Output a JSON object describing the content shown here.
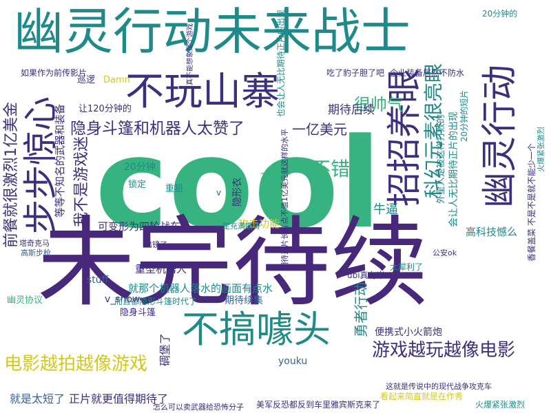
{
  "palette": {
    "navy": "#3b2f7e",
    "blue": "#35609a",
    "teal": "#1f8a8a",
    "green": "#36b37e",
    "lime": "#9bd03a",
    "yellow": "#d6c818",
    "purple": "#47287a"
  },
  "words": [
    {
      "text": "幽灵行动未来战士",
      "color": "teal"
    },
    {
      "text": "不玩山寨",
      "color": "navy"
    },
    {
      "text": "步步惊心",
      "color": "navy"
    },
    {
      "text": "招招养眼",
      "color": "navy"
    },
    {
      "text": "很帅气",
      "color": "green"
    },
    {
      "text": "隐身斗篷和机器人太赞了",
      "color": "navy"
    },
    {
      "text": "科幻元素很亮眼",
      "color": "teal"
    },
    {
      "text": "幽灵行动",
      "color": "navy"
    },
    {
      "text": "cool",
      "color": "green"
    },
    {
      "text": "不错",
      "color": "green"
    },
    {
      "text": "一亿美元",
      "color": "navy"
    },
    {
      "text": "期待后续",
      "color": "navy"
    },
    {
      "text": "前餐就很激烈1亿美金",
      "color": "navy"
    },
    {
      "text": "我不是游戏迷",
      "color": "navy"
    },
    {
      "text": "未完待续",
      "color": "purple"
    },
    {
      "text": "不搞噱头",
      "color": "teal"
    },
    {
      "text": "游戏越玩越像电影",
      "color": "navy"
    },
    {
      "text": "电影越拍越像游戏",
      "color": "yellow"
    },
    {
      "text": "勇者行动",
      "color": "teal"
    },
    {
      "text": "就是太短了",
      "color": "blue"
    },
    {
      "text": "正片就更值得期待了",
      "color": "navy"
    },
    {
      "text": "攻击功能",
      "color": "yellow"
    },
    {
      "text": "高科技憾么",
      "color": "teal"
    },
    {
      "text": "牛逼",
      "color": "teal"
    },
    {
      "text": "隐身斗篷",
      "color": "navy"
    },
    {
      "text": "期待续集",
      "color": "blue"
    },
    {
      "text": "重型机器人",
      "color": "navy"
    },
    {
      "text": "就那个机器人落水的画面有点水",
      "color": "teal"
    },
    {
      "text": "可变形为四轮战车",
      "color": "navy"
    },
    {
      "text": "20分钟",
      "color": "teal"
    },
    {
      "text": "锁定",
      "color": "teal"
    },
    {
      "text": "重狙",
      "color": "teal"
    },
    {
      "text": "隐形衣",
      "color": "navy"
    },
    {
      "text": "youku",
      "color": "blue"
    },
    {
      "text": "v_show",
      "color": "navy"
    },
    {
      "text": "stuff",
      "color": "blue"
    },
    {
      "text": "Damn",
      "color": "yellow"
    },
    {
      "text": "碉堡了",
      "color": "navy"
    },
    {
      "text": "让120分钟的",
      "color": "navy"
    },
    {
      "text": "幽灵协议",
      "color": "green"
    },
    {
      "text": "巡逻",
      "color": "navy"
    },
    {
      "text": "便携式小火箭炮",
      "color": "navy"
    },
    {
      "text": "而且都隐形斗篷时代了",
      "color": "teal"
    },
    {
      "text": "等等不知名的武器和装备",
      "color": "navy"
    },
    {
      "text": "20分钟的",
      "color": "teal"
    },
    {
      "text": "ubi真有米",
      "color": "navy"
    },
    {
      "text": "太犀利了",
      "color": "teal"
    },
    {
      "text": "火爆紧张激烈",
      "color": "teal"
    },
    {
      "text": "看起来简直就是在作秀",
      "color": "yellow"
    },
    {
      "text": "美军反恐都反到车里雅宾斯克来了",
      "color": "navy"
    },
    {
      "text": "怎么可以卖武器给恐怖分子",
      "color": "navy"
    },
    {
      "text": "这就是传说中的现代战争攻克车",
      "color": "navy"
    },
    {
      "text": "香餐盖菜 不是不是就不能少一个",
      "color": "navy"
    },
    {
      "text": "塔奇克马",
      "color": "navy"
    },
    {
      "text": "高斯步枪",
      "color": "blue"
    },
    {
      "text": "出镜了",
      "color": "navy"
    },
    {
      "text": "一定充满期待",
      "color": "teal"
    },
    {
      "text": "2分钟",
      "color": "green"
    },
    {
      "text": "也会让人无比期待正片的出现",
      "color": "teal"
    },
    {
      "text": "会让人无比期待正片的出现",
      "color": "teal"
    },
    {
      "text": "期待正片长有点不值1亿美元就这样的水平",
      "color": "navy"
    },
    {
      "text": "吃了豹子胆了吧",
      "color": "navy"
    },
    {
      "text": "企业装备居然不防水",
      "color": "navy"
    },
    {
      "text": "如果作为前传影片",
      "color": "navy"
    },
    {
      "text": "外星人是被这样打败的",
      "color": "teal"
    },
    {
      "text": "20分钟的短片",
      "color": "teal"
    },
    {
      "text": "公安ok",
      "color": "navy"
    },
    {
      "text": "火爆紧张激烈",
      "color": "teal"
    },
    {
      "text": "v",
      "color": "blue"
    },
    {
      "text": "真不能想象是个游戏",
      "color": "navy"
    }
  ]
}
